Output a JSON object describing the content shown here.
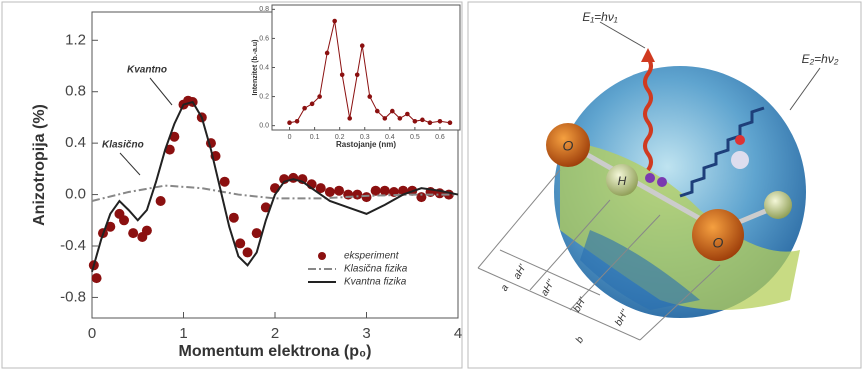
{
  "chart_data": [
    {
      "type": "scatter-line",
      "xlabel": "Momentum elektrona (p₀)",
      "ylabel": "Anizotropija (%)",
      "xlim": [
        0,
        4
      ],
      "ylim": [
        -0.96,
        1.42
      ],
      "xticks": [
        0,
        1,
        2,
        3,
        4
      ],
      "yticks": [
        -0.8,
        -0.4,
        {
          "value": 0,
          "label": "0.0"
        },
        0.4,
        0.8,
        1.2
      ],
      "legend": "lower right",
      "annotations": [
        "Kvantno",
        "Klasično"
      ],
      "series": [
        {
          "name": "eksperiment",
          "color": "#8b1010",
          "style": "markers",
          "x": [
            0.02,
            0.05,
            0.12,
            0.2,
            0.3,
            0.35,
            0.45,
            0.55,
            0.6,
            0.75,
            0.85,
            0.9,
            1.0,
            1.05,
            1.1,
            1.2,
            1.3,
            1.35,
            1.45,
            1.55,
            1.62,
            1.7,
            1.8,
            1.9,
            2.0,
            2.1,
            2.2,
            2.3,
            2.4,
            2.5,
            2.6,
            2.7,
            2.8,
            2.9,
            3.0,
            3.1,
            3.2,
            3.3,
            3.4,
            3.5,
            3.6,
            3.7,
            3.8,
            3.9
          ],
          "values": [
            -0.55,
            -0.65,
            -0.3,
            -0.25,
            -0.15,
            -0.2,
            -0.3,
            -0.33,
            -0.28,
            -0.05,
            0.35,
            0.45,
            0.7,
            0.73,
            0.72,
            0.6,
            0.4,
            0.3,
            0.1,
            -0.18,
            -0.38,
            -0.45,
            -0.3,
            -0.1,
            0.05,
            0.12,
            0.13,
            0.12,
            0.08,
            0.05,
            0.02,
            0.03,
            0.0,
            0.0,
            -0.02,
            0.03,
            0.03,
            0.02,
            0.03,
            0.03,
            -0.02,
            0.02,
            0.01,
            0.0
          ]
        },
        {
          "name": "Klasična fizika",
          "color": "#888888",
          "style": "dashdot",
          "x": [
            0,
            0.4,
            0.8,
            1.2,
            1.6,
            2.0,
            2.5,
            3.0,
            3.5,
            4.0
          ],
          "values": [
            -0.05,
            0.02,
            0.07,
            0.05,
            0.0,
            -0.03,
            -0.03,
            -0.01,
            0.0,
            0.0
          ]
        },
        {
          "name": "Kvantna fizika",
          "color": "#222222",
          "style": "solid",
          "x": [
            0,
            0.1,
            0.2,
            0.3,
            0.4,
            0.5,
            0.6,
            0.7,
            0.8,
            0.9,
            1.0,
            1.1,
            1.2,
            1.3,
            1.4,
            1.5,
            1.6,
            1.7,
            1.8,
            1.9,
            2.0,
            2.1,
            2.2,
            2.3,
            2.4,
            2.6,
            2.8,
            3.0,
            3.2,
            3.4,
            3.6,
            3.8,
            4.0
          ],
          "values": [
            -0.6,
            -0.35,
            -0.15,
            -0.05,
            -0.12,
            -0.2,
            -0.12,
            0.1,
            0.35,
            0.55,
            0.7,
            0.72,
            0.6,
            0.35,
            0.05,
            -0.25,
            -0.48,
            -0.55,
            -0.45,
            -0.2,
            0.0,
            0.1,
            0.12,
            0.1,
            0.05,
            -0.05,
            -0.1,
            -0.15,
            -0.08,
            0.0,
            0.05,
            0.03,
            0.0
          ]
        }
      ]
    },
    {
      "type": "scatter-line",
      "xlabel": "Rastojanje (nm)",
      "ylabel": "Intenzitet (b.-a.u)",
      "xlim": [
        -0.07,
        0.68
      ],
      "ylim": [
        -0.03,
        0.83
      ],
      "xticks": [
        0,
        0.1,
        0.2,
        0.3,
        0.4,
        0.5,
        0.6
      ],
      "yticks": [
        {
          "value": 0,
          "label": "0.0"
        },
        0.2,
        0.4,
        0.6,
        0.8
      ],
      "series": [
        {
          "color": "#8b1010",
          "style": "markers-line",
          "x": [
            0.0,
            0.03,
            0.06,
            0.09,
            0.12,
            0.15,
            0.18,
            0.21,
            0.24,
            0.27,
            0.29,
            0.32,
            0.35,
            0.38,
            0.41,
            0.44,
            0.47,
            0.5,
            0.53,
            0.56,
            0.6,
            0.64
          ],
          "values": [
            0.02,
            0.03,
            0.12,
            0.15,
            0.2,
            0.5,
            0.72,
            0.35,
            0.05,
            0.35,
            0.55,
            0.2,
            0.1,
            0.05,
            0.1,
            0.05,
            0.08,
            0.03,
            0.04,
            0.02,
            0.03,
            0.02
          ]
        }
      ]
    }
  ],
  "illustration": {
    "labels": [
      "E₁=hν₁",
      "E₂=hν₂",
      "O",
      "H",
      "O",
      "aH'",
      "aH''",
      "bH'",
      "bH''",
      "a",
      "b"
    ]
  }
}
